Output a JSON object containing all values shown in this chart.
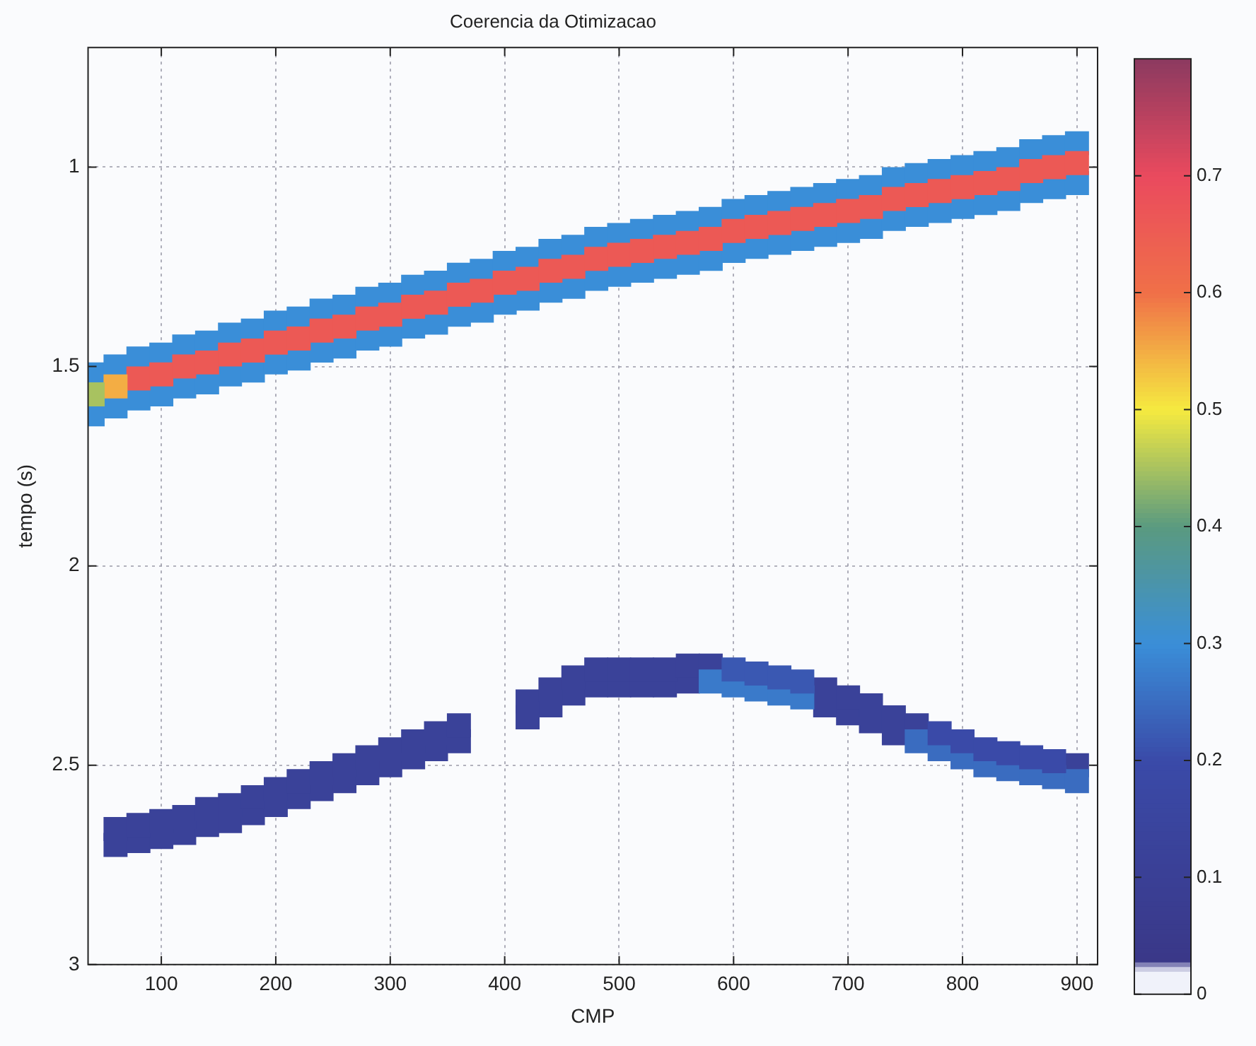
{
  "chart_data": {
    "type": "scatter",
    "title": "Coerencia da Otimizacao",
    "xlabel": "CMP",
    "ylabel": "tempo (s)",
    "marker": "square",
    "grid": true,
    "xlim": [
      36,
      918
    ],
    "ylim": [
      3,
      0.7
    ],
    "xticks": [
      100,
      200,
      300,
      400,
      500,
      600,
      700,
      800,
      900
    ],
    "yticks": [
      1,
      1.5,
      2,
      2.5,
      3
    ],
    "clim": [
      0,
      0.8
    ],
    "cticks": [
      0,
      0.1,
      0.2,
      0.3,
      0.4,
      0.5,
      0.6,
      0.7
    ],
    "x": [
      40,
      60,
      80,
      100,
      120,
      140,
      160,
      180,
      200,
      220,
      240,
      260,
      280,
      300,
      320,
      340,
      360,
      380,
      400,
      420,
      440,
      460,
      480,
      500,
      520,
      540,
      560,
      580,
      600,
      620,
      640,
      660,
      680,
      700,
      720,
      740,
      760,
      780,
      800,
      820,
      840,
      860,
      880,
      900
    ],
    "series": [
      {
        "x": [
          40
        ],
        "values": [
          1.57
        ],
        "cvalues": [
          0.45
        ]
      },
      {
        "x": [
          60
        ],
        "values": [
          1.55
        ],
        "cvalues": [
          0.55
        ]
      },
      {
        "x": [
          80,
          100,
          120,
          140,
          160,
          180,
          200,
          220,
          240,
          260,
          280,
          300,
          320,
          340,
          360,
          380,
          400,
          420,
          440,
          460,
          480,
          500,
          520,
          540,
          560,
          580,
          600,
          620,
          640,
          660,
          680,
          700,
          720,
          740,
          760,
          780,
          800,
          820,
          840,
          860,
          880,
          900
        ],
        "values": [
          1.53,
          1.52,
          1.5,
          1.49,
          1.47,
          1.46,
          1.44,
          1.43,
          1.41,
          1.4,
          1.38,
          1.37,
          1.35,
          1.34,
          1.32,
          1.31,
          1.29,
          1.28,
          1.26,
          1.25,
          1.23,
          1.22,
          1.21,
          1.2,
          1.19,
          1.18,
          1.16,
          1.15,
          1.14,
          1.13,
          1.12,
          1.11,
          1.1,
          1.08,
          1.07,
          1.06,
          1.05,
          1.04,
          1.03,
          1.01,
          1.0,
          0.99
        ],
        "cvalues": [
          0.66,
          0.66,
          0.66,
          0.66,
          0.66,
          0.66,
          0.66,
          0.66,
          0.66,
          0.66,
          0.66,
          0.66,
          0.66,
          0.66,
          0.66,
          0.66,
          0.66,
          0.66,
          0.66,
          0.66,
          0.66,
          0.66,
          0.66,
          0.66,
          0.66,
          0.66,
          0.66,
          0.66,
          0.66,
          0.66,
          0.66,
          0.66,
          0.66,
          0.66,
          0.66,
          0.66,
          0.66,
          0.66,
          0.66,
          0.66,
          0.66,
          0.66
        ]
      },
      {
        "values": [
          1.52,
          1.5,
          1.48,
          1.47,
          1.45,
          1.44,
          1.42,
          1.41,
          1.39,
          1.38,
          1.36,
          1.35,
          1.33,
          1.32,
          1.3,
          1.29,
          1.27,
          1.26,
          1.24,
          1.23,
          1.21,
          1.2,
          1.18,
          1.17,
          1.16,
          1.15,
          1.14,
          1.13,
          1.11,
          1.1,
          1.09,
          1.08,
          1.07,
          1.06,
          1.05,
          1.03,
          1.02,
          1.01,
          1.0,
          0.99,
          0.98,
          0.96,
          0.95,
          0.94
        ],
        "cvalues": [
          0.3,
          0.3,
          0.3,
          0.3,
          0.3,
          0.3,
          0.3,
          0.3,
          0.3,
          0.3,
          0.3,
          0.3,
          0.3,
          0.3,
          0.3,
          0.3,
          0.3,
          0.3,
          0.3,
          0.3,
          0.3,
          0.3,
          0.3,
          0.3,
          0.3,
          0.3,
          0.3,
          0.3,
          0.3,
          0.3,
          0.3,
          0.3,
          0.3,
          0.3,
          0.3,
          0.3,
          0.3,
          0.3,
          0.3,
          0.3,
          0.3,
          0.3,
          0.3,
          0.3
        ]
      },
      {
        "values": [
          1.62,
          1.6,
          1.58,
          1.57,
          1.55,
          1.54,
          1.52,
          1.51,
          1.49,
          1.48,
          1.46,
          1.45,
          1.43,
          1.42,
          1.4,
          1.39,
          1.37,
          1.36,
          1.34,
          1.33,
          1.31,
          1.3,
          1.28,
          1.27,
          1.26,
          1.25,
          1.24,
          1.23,
          1.21,
          1.2,
          1.19,
          1.18,
          1.17,
          1.16,
          1.15,
          1.13,
          1.12,
          1.11,
          1.1,
          1.09,
          1.08,
          1.06,
          1.05,
          1.04
        ],
        "cvalues": [
          0.3,
          0.3,
          0.3,
          0.3,
          0.3,
          0.3,
          0.3,
          0.3,
          0.3,
          0.3,
          0.3,
          0.3,
          0.3,
          0.3,
          0.3,
          0.3,
          0.3,
          0.3,
          0.3,
          0.3,
          0.3,
          0.3,
          0.3,
          0.3,
          0.3,
          0.3,
          0.3,
          0.3,
          0.3,
          0.3,
          0.3,
          0.3,
          0.3,
          0.3,
          0.3,
          0.3,
          0.3,
          0.3,
          0.3,
          0.3,
          0.3,
          0.3,
          0.3,
          0.3
        ]
      },
      {
        "x": [
          600,
          620,
          640,
          660
        ],
        "values": [
          2.26,
          2.27,
          2.28,
          2.29
        ],
        "cvalues": [
          0.22,
          0.22,
          0.22,
          0.22
        ]
      },
      {
        "x": [
          780,
          800,
          820,
          840,
          860,
          880
        ],
        "values": [
          2.42,
          2.44,
          2.46,
          2.47,
          2.48,
          2.49
        ],
        "cvalues": [
          0.2,
          0.2,
          0.2,
          0.2,
          0.2,
          0.2
        ]
      },
      {
        "x": [
          580,
          600,
          620,
          640,
          660
        ],
        "values": [
          2.29,
          2.3,
          2.31,
          2.32,
          2.33
        ],
        "cvalues": [
          0.27,
          0.27,
          0.27,
          0.27,
          0.27
        ]
      },
      {
        "x": [
          760,
          780,
          800,
          820,
          840,
          860,
          880,
          900
        ],
        "values": [
          2.44,
          2.46,
          2.48,
          2.5,
          2.51,
          2.52,
          2.53,
          2.54
        ],
        "cvalues": [
          0.25,
          0.25,
          0.25,
          0.25,
          0.25,
          0.25,
          0.25,
          0.25
        ]
      },
      {
        "x": [
          60,
          80,
          100,
          120,
          140,
          160,
          180,
          200,
          220,
          240,
          260,
          280,
          300,
          320,
          340,
          360,
          420,
          440,
          460,
          480,
          500,
          520,
          540,
          560,
          580,
          680,
          700,
          720,
          740,
          760,
          900
        ],
        "values": [
          2.66,
          2.65,
          2.64,
          2.63,
          2.61,
          2.6,
          2.58,
          2.56,
          2.54,
          2.52,
          2.5,
          2.48,
          2.46,
          2.44,
          2.42,
          2.4,
          2.34,
          2.31,
          2.28,
          2.26,
          2.26,
          2.26,
          2.26,
          2.25,
          2.25,
          2.31,
          2.33,
          2.35,
          2.38,
          2.4,
          2.5
        ],
        "cvalues": [
          0.12,
          0.12,
          0.12,
          0.12,
          0.12,
          0.12,
          0.12,
          0.12,
          0.12,
          0.12,
          0.12,
          0.12,
          0.12,
          0.12,
          0.12,
          0.12,
          0.12,
          0.12,
          0.12,
          0.12,
          0.12,
          0.12,
          0.12,
          0.12,
          0.12,
          0.12,
          0.12,
          0.12,
          0.12,
          0.12,
          0.12
        ]
      },
      {
        "x": [
          60,
          80,
          100,
          120,
          140,
          160,
          180,
          200,
          220,
          240,
          260,
          280,
          300,
          320,
          340,
          360,
          420,
          440,
          460,
          480,
          500,
          520,
          540,
          560,
          680,
          700,
          720,
          740
        ],
        "values": [
          2.7,
          2.69,
          2.68,
          2.67,
          2.65,
          2.64,
          2.62,
          2.6,
          2.58,
          2.56,
          2.54,
          2.52,
          2.5,
          2.48,
          2.46,
          2.44,
          2.38,
          2.35,
          2.32,
          2.3,
          2.3,
          2.3,
          2.3,
          2.29,
          2.35,
          2.37,
          2.39,
          2.42
        ],
        "cvalues": [
          0.12,
          0.12,
          0.12,
          0.12,
          0.12,
          0.12,
          0.12,
          0.12,
          0.12,
          0.12,
          0.12,
          0.12,
          0.12,
          0.12,
          0.12,
          0.12,
          0.12,
          0.12,
          0.12,
          0.12,
          0.12,
          0.12,
          0.12,
          0.12,
          0.12,
          0.12,
          0.12,
          0.12
        ]
      }
    ]
  }
}
